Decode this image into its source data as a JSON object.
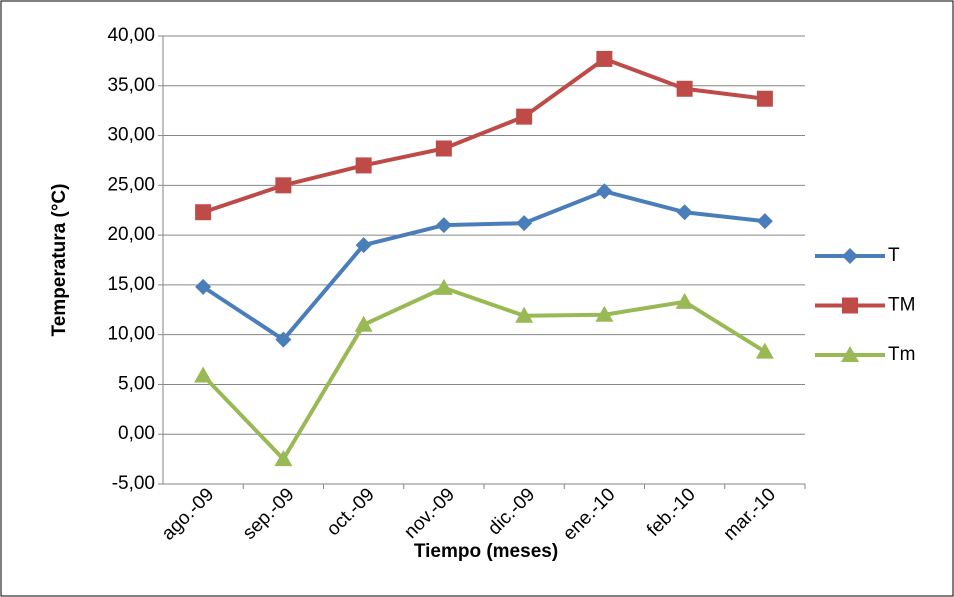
{
  "chart_data": {
    "type": "line",
    "x_label": "Tiempo (meses)",
    "y_label": "Temperatura (°C)",
    "categories": [
      "ago.-09",
      "sep.-09",
      "oct.-09",
      "nov.-09",
      "dic.-09",
      "ene.-10",
      "feb.-10",
      "mar.-10"
    ],
    "series": [
      {
        "name": "T",
        "color": "#4a7ebb",
        "marker": "diamond",
        "values": [
          14.8,
          9.5,
          19.0,
          21.0,
          21.2,
          24.4,
          22.3,
          21.4
        ]
      },
      {
        "name": "TM",
        "color": "#be4b48",
        "marker": "square",
        "values": [
          22.3,
          25.0,
          27.0,
          28.7,
          31.9,
          37.7,
          34.7,
          33.7
        ]
      },
      {
        "name": "Tm",
        "color": "#98b954",
        "marker": "triangle",
        "values": [
          5.9,
          -2.5,
          11.0,
          14.7,
          11.9,
          12.0,
          13.3,
          8.3
        ]
      }
    ],
    "ylim": [
      -5,
      40
    ],
    "yticks": [
      {
        "value": -5,
        "label": "-5,00"
      },
      {
        "value": 0,
        "label": "0,00"
      },
      {
        "value": 5,
        "label": "5,00"
      },
      {
        "value": 10,
        "label": "10,00"
      },
      {
        "value": 15,
        "label": "15,00"
      },
      {
        "value": 20,
        "label": "20,00"
      },
      {
        "value": 25,
        "label": "25,00"
      },
      {
        "value": 30,
        "label": "30,00"
      },
      {
        "value": 35,
        "label": "35,00"
      },
      {
        "value": 40,
        "label": "40,00"
      }
    ],
    "grid": true,
    "legend": "right"
  }
}
